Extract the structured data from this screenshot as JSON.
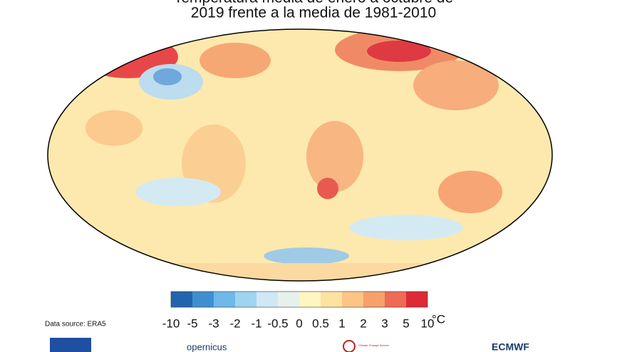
{
  "header": {
    "title_lines": [
      "Temperatura media de enero a octubre de",
      "2019 frente a la media de 1981-2010"
    ]
  },
  "colorbar": {
    "ticks": [
      -10,
      -5,
      -3,
      -2,
      -1,
      -0.5,
      0,
      0.5,
      1,
      2,
      3,
      5,
      10
    ],
    "colors": [
      "#2166ac",
      "#3f8fd0",
      "#6fb8e8",
      "#9fd4f1",
      "#cfe8f4",
      "#e6f1ee",
      "#fff5c0",
      "#fde3a0",
      "#fcc585",
      "#f6a06b",
      "#ee6b55",
      "#dd2b35"
    ],
    "unit": "°C"
  },
  "footer": {
    "source": "Data source: ERA5",
    "logos": [
      "opernicus",
      "Climate Change Service",
      "ECMWF"
    ]
  }
}
